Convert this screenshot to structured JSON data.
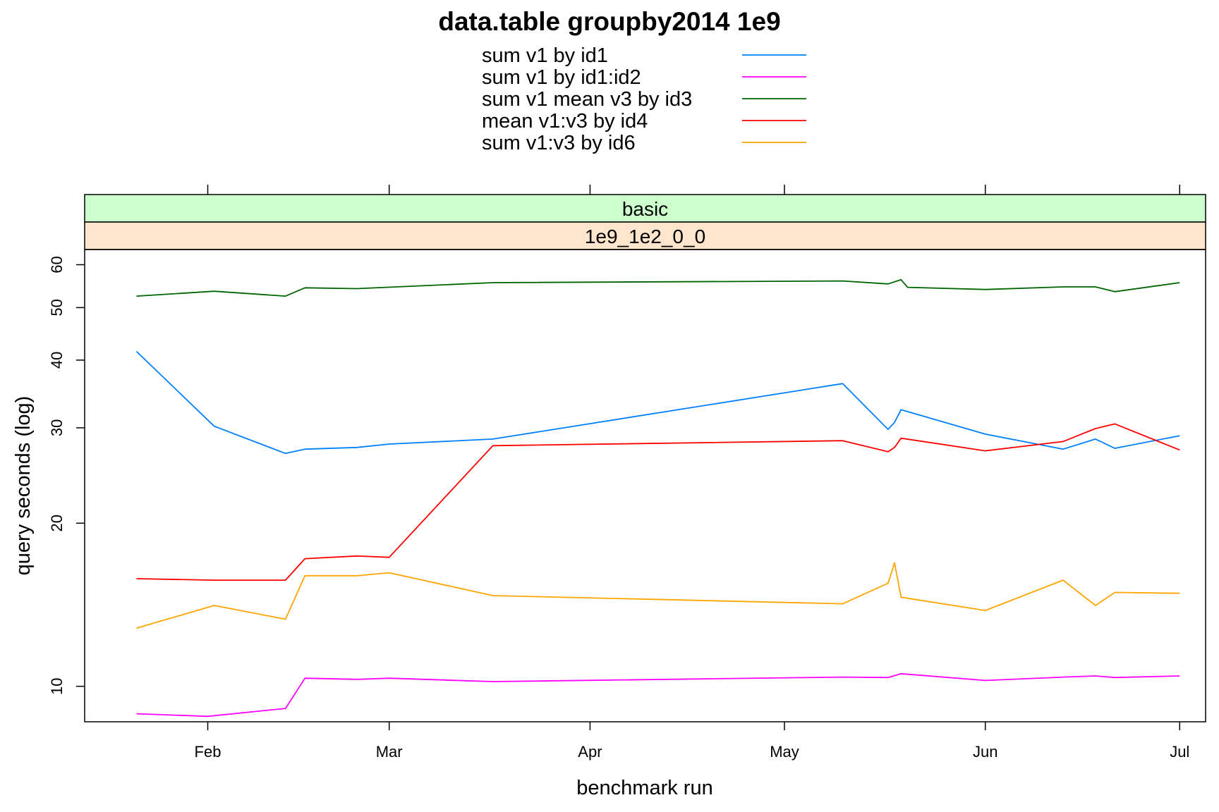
{
  "chart_data": {
    "type": "line",
    "title": "data.table groupby2014 1e9",
    "xlabel": "benchmark run",
    "ylabel": "query seconds (log)",
    "y_scale": "log",
    "ylim": [
      8.6,
      64
    ],
    "xlim": [
      "2014-01-13",
      "2014-07-05"
    ],
    "grid": false,
    "legend_position": "top",
    "strips": [
      "basic",
      "1e9_1e2_0_0"
    ],
    "strip_colors": [
      "#ccffcc",
      "#ffe5cc"
    ],
    "x_ticks": [
      {
        "date": "2014-02-01",
        "label": "Feb"
      },
      {
        "date": "2014-03-01",
        "label": "Mar"
      },
      {
        "date": "2014-04-01",
        "label": "Apr"
      },
      {
        "date": "2014-05-01",
        "label": "May"
      },
      {
        "date": "2014-06-01",
        "label": "Jun"
      },
      {
        "date": "2014-07-01",
        "label": "Jul"
      }
    ],
    "y_ticks": [
      10,
      20,
      30,
      40,
      50,
      60
    ],
    "series": [
      {
        "name": "sum v1 by id1",
        "color": "#0080ff",
        "points": [
          [
            "2014-01-21",
            41.5
          ],
          [
            "2014-02-02",
            30.2
          ],
          [
            "2014-02-13",
            26.9
          ],
          [
            "2014-02-16",
            27.4
          ],
          [
            "2014-02-24",
            27.6
          ],
          [
            "2014-03-01",
            28.0
          ],
          [
            "2014-03-17",
            28.6
          ],
          [
            "2014-05-10",
            36.2
          ],
          [
            "2014-05-17",
            29.8
          ],
          [
            "2014-05-18",
            30.7
          ],
          [
            "2014-05-19",
            32.4
          ],
          [
            "2014-06-01",
            29.2
          ],
          [
            "2014-06-13",
            27.4
          ],
          [
            "2014-06-18",
            28.6
          ],
          [
            "2014-06-21",
            27.5
          ],
          [
            "2014-07-01",
            29.0
          ]
        ]
      },
      {
        "name": "sum v1 by id1:id2",
        "color": "#ff00ff",
        "points": [
          [
            "2014-01-21",
            8.9
          ],
          [
            "2014-02-01",
            8.8
          ],
          [
            "2014-02-13",
            9.1
          ],
          [
            "2014-02-16",
            10.35
          ],
          [
            "2014-02-24",
            10.3
          ],
          [
            "2014-03-01",
            10.35
          ],
          [
            "2014-03-17",
            10.2
          ],
          [
            "2014-05-10",
            10.4
          ],
          [
            "2014-05-17",
            10.38
          ],
          [
            "2014-05-19",
            10.55
          ],
          [
            "2014-06-01",
            10.25
          ],
          [
            "2014-06-13",
            10.4
          ],
          [
            "2014-06-18",
            10.45
          ],
          [
            "2014-06-21",
            10.38
          ],
          [
            "2014-07-01",
            10.45
          ]
        ]
      },
      {
        "name": "sum v1 mean v3 by id3",
        "color": "#006400",
        "points": [
          [
            "2014-01-21",
            52.5
          ],
          [
            "2014-02-02",
            53.6
          ],
          [
            "2014-02-13",
            52.5
          ],
          [
            "2014-02-16",
            54.4
          ],
          [
            "2014-02-24",
            54.2
          ],
          [
            "2014-03-17",
            55.6
          ],
          [
            "2014-05-10",
            56.0
          ],
          [
            "2014-05-17",
            55.3
          ],
          [
            "2014-05-19",
            56.3
          ],
          [
            "2014-05-20",
            54.5
          ],
          [
            "2014-06-01",
            54.0
          ],
          [
            "2014-06-13",
            54.6
          ],
          [
            "2014-06-18",
            54.6
          ],
          [
            "2014-06-21",
            53.5
          ],
          [
            "2014-07-01",
            55.6
          ]
        ]
      },
      {
        "name": "mean v1:v3 by id4",
        "color": "#ff0000",
        "points": [
          [
            "2014-01-21",
            15.8
          ],
          [
            "2014-02-02",
            15.7
          ],
          [
            "2014-02-13",
            15.7
          ],
          [
            "2014-02-16",
            17.2
          ],
          [
            "2014-02-24",
            17.4
          ],
          [
            "2014-03-01",
            17.3
          ],
          [
            "2014-03-17",
            27.8
          ],
          [
            "2014-05-10",
            28.4
          ],
          [
            "2014-05-17",
            27.1
          ],
          [
            "2014-05-18",
            27.6
          ],
          [
            "2014-05-19",
            28.7
          ],
          [
            "2014-06-01",
            27.2
          ],
          [
            "2014-06-13",
            28.3
          ],
          [
            "2014-06-18",
            29.9
          ],
          [
            "2014-06-21",
            30.5
          ],
          [
            "2014-07-01",
            27.3
          ]
        ]
      },
      {
        "name": "sum v1:v3 by id6",
        "color": "#ffa500",
        "points": [
          [
            "2014-01-21",
            12.8
          ],
          [
            "2014-02-02",
            14.1
          ],
          [
            "2014-02-13",
            13.3
          ],
          [
            "2014-02-16",
            16.0
          ],
          [
            "2014-02-24",
            16.0
          ],
          [
            "2014-03-01",
            16.2
          ],
          [
            "2014-03-17",
            14.7
          ],
          [
            "2014-05-10",
            14.2
          ],
          [
            "2014-05-17",
            15.5
          ],
          [
            "2014-05-18",
            16.9
          ],
          [
            "2014-05-19",
            14.6
          ],
          [
            "2014-06-01",
            13.8
          ],
          [
            "2014-06-13",
            15.7
          ],
          [
            "2014-06-18",
            14.1
          ],
          [
            "2014-06-21",
            14.9
          ],
          [
            "2014-07-01",
            14.85
          ]
        ]
      }
    ]
  }
}
